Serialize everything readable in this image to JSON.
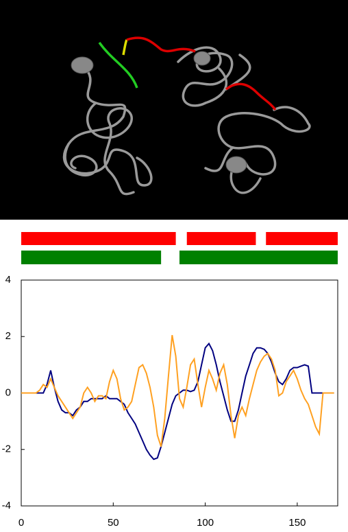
{
  "chart_data": {
    "type": "line",
    "x": [
      0,
      2,
      4,
      6,
      8,
      10,
      12,
      14,
      16,
      18,
      20,
      22,
      24,
      26,
      28,
      30,
      32,
      34,
      36,
      38,
      40,
      42,
      44,
      46,
      48,
      50,
      52,
      54,
      56,
      58,
      60,
      62,
      64,
      66,
      68,
      70,
      72,
      74,
      76,
      78,
      80,
      82,
      84,
      86,
      88,
      90,
      92,
      94,
      96,
      98,
      100,
      102,
      104,
      106,
      108,
      110,
      112,
      114,
      116,
      118,
      120,
      122,
      124,
      126,
      128,
      130,
      132,
      134,
      136,
      138,
      140,
      142,
      144,
      146,
      148,
      150,
      152,
      154,
      156,
      158,
      160,
      162,
      164,
      166,
      168,
      170
    ],
    "series": [
      {
        "color": "#000080",
        "values": [
          0,
          0,
          0,
          0,
          0,
          0,
          0,
          0.3,
          0.8,
          0.2,
          -0.3,
          -0.6,
          -0.7,
          -0.7,
          -0.8,
          -0.6,
          -0.5,
          -0.3,
          -0.3,
          -0.2,
          -0.2,
          -0.2,
          -0.2,
          -0.1,
          -0.2,
          -0.2,
          -0.2,
          -0.3,
          -0.4,
          -0.7,
          -0.9,
          -1.1,
          -1.4,
          -1.7,
          -2.0,
          -2.2,
          -2.35,
          -2.3,
          -1.9,
          -1.4,
          -0.9,
          -0.4,
          -0.1,
          0,
          0.1,
          0.1,
          0.05,
          0.1,
          0.4,
          1.0,
          1.6,
          1.75,
          1.5,
          1.0,
          0.4,
          -0.1,
          -0.6,
          -1.0,
          -1.0,
          -0.6,
          0,
          0.6,
          1.0,
          1.4,
          1.6,
          1.6,
          1.55,
          1.4,
          1.1,
          0.7,
          0.4,
          0.3,
          0.5,
          0.8,
          0.9,
          0.9,
          0.95,
          1.0,
          0.95,
          0,
          0,
          0,
          0,
          0,
          0,
          0
        ]
      },
      {
        "color": "#ffa020",
        "values": [
          0,
          0,
          0,
          0,
          0,
          0.1,
          0.3,
          0.2,
          0.5,
          0.2,
          -0.1,
          -0.3,
          -0.5,
          -0.7,
          -0.9,
          -0.7,
          -0.5,
          0,
          0.2,
          0,
          -0.3,
          -0.1,
          -0.1,
          -0.2,
          0.4,
          0.8,
          0.5,
          -0.2,
          -0.6,
          -0.5,
          -0.3,
          0.3,
          0.9,
          1.0,
          0.7,
          0.2,
          -0.5,
          -1.5,
          -1.9,
          -0.9,
          0.6,
          2.05,
          1.3,
          -0.2,
          -0.5,
          0.2,
          1.0,
          1.2,
          0.3,
          -0.5,
          0.2,
          0.8,
          0.5,
          0.1,
          0.7,
          1.0,
          0.3,
          -0.8,
          -1.6,
          -0.8,
          -0.5,
          -0.8,
          -0.2,
          0.3,
          0.8,
          1.1,
          1.3,
          1.4,
          1.2,
          0.8,
          -0.1,
          0,
          0.4,
          0.6,
          0.8,
          0.5,
          0.1,
          -0.2,
          -0.4,
          -0.8,
          -1.2,
          -1.45,
          0,
          0,
          0,
          0
        ]
      }
    ],
    "tracks": [
      {
        "color": "#ff0000",
        "ranges": [
          [
            0,
            84
          ],
          [
            90,
            127.5
          ],
          [
            133,
            172
          ]
        ]
      },
      {
        "color": "#008000",
        "ranges": [
          [
            0,
            76
          ],
          [
            86,
            172
          ]
        ]
      }
    ],
    "xlim": [
      0,
      172
    ],
    "ylim": [
      -4,
      4
    ],
    "xticks": [
      0,
      50,
      100,
      150
    ],
    "yticks": [
      -4,
      -2,
      0,
      2,
      4
    ]
  }
}
